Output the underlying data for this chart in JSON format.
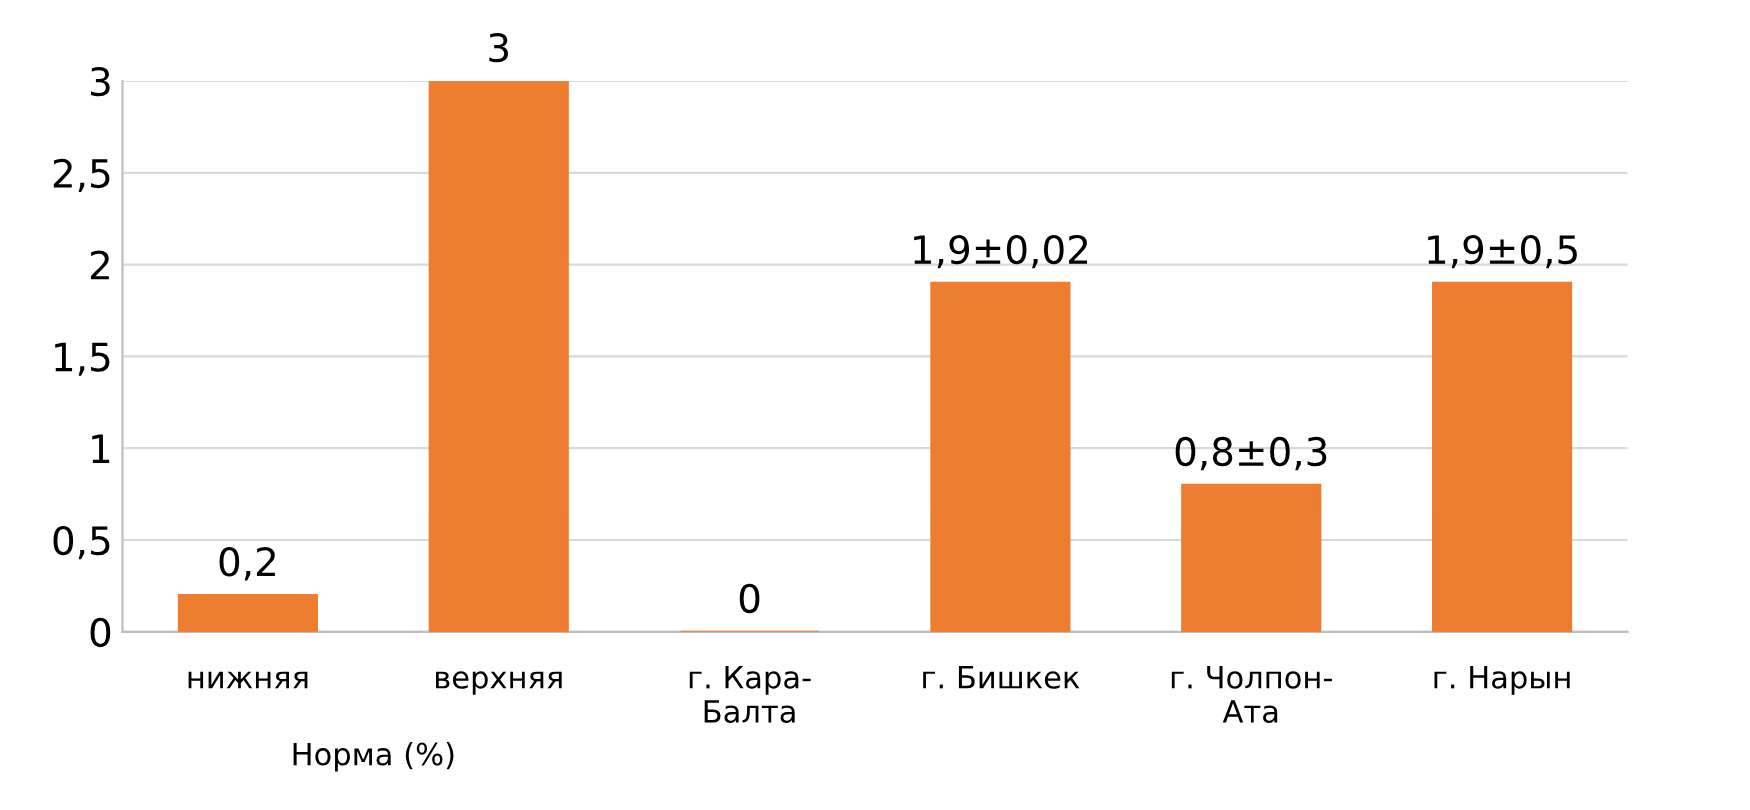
{
  "chart_data": {
    "type": "bar",
    "categories": [
      "нижняя",
      "верхняя",
      "г. Кара-Балта",
      "г. Бишкек",
      "г. Чолпон-Ата",
      "г. Нарын"
    ],
    "values": [
      0.2,
      3,
      0,
      1.9,
      0.8,
      1.9
    ],
    "value_labels": [
      "0,2",
      "3",
      "0",
      "1,9±0,02",
      "0,8±0,3",
      "1,9±0,5"
    ],
    "color": "#ed7d31",
    "ylim": [
      0,
      3
    ],
    "yticks": [
      0,
      {
        "value": 0.5,
        "label": "0,5"
      },
      1,
      {
        "value": 1.5,
        "label": "1,5"
      },
      2,
      {
        "value": 2.5,
        "label": "2,5"
      },
      3
    ],
    "grid": "y",
    "annotations": [
      "Норма (%)"
    ]
  }
}
